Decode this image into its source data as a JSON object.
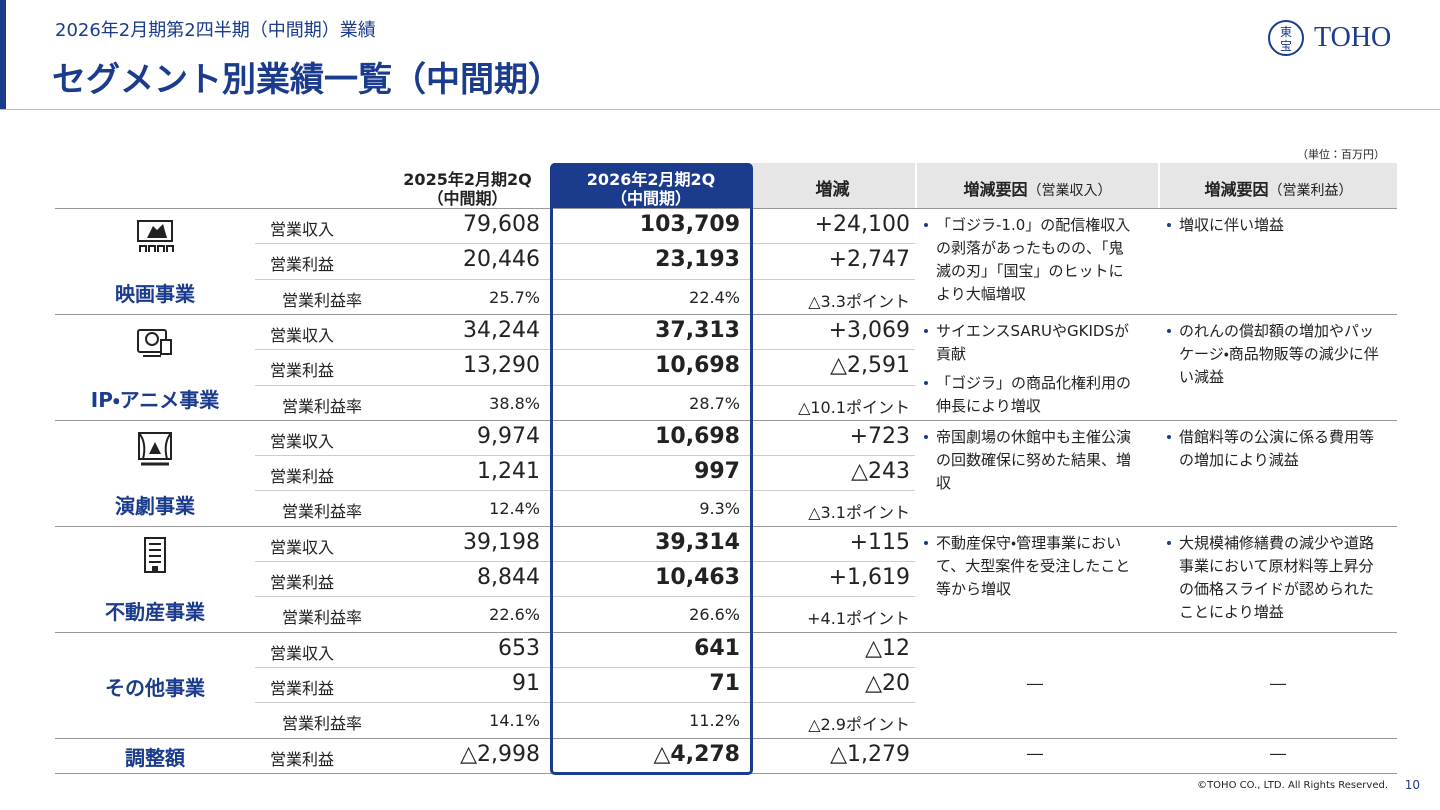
{
  "header": {
    "subtitle": "2026年2月期第2四半期（中間期）業績",
    "title": "セグメント別業績一覧（中間期）"
  },
  "logo": {
    "mark": "東宝",
    "text": "TOHO"
  },
  "unit": "（単位：百万円）",
  "table": {
    "columns": [
      {
        "lines": [
          "2025年2月期2Q",
          "（中間期）"
        ]
      },
      {
        "lines": [
          "2026年2月期2Q",
          "（中間期）"
        ]
      },
      {
        "lines": [
          "増減"
        ]
      },
      {
        "main": "増減要因",
        "sub": "（営業収入）"
      },
      {
        "main": "増減要因",
        "sub": "（営業利益）"
      }
    ],
    "segments": [
      {
        "name": "映画事業",
        "rows": [
          [
            "営業収入",
            "79,608",
            "103,709",
            "+24,100"
          ],
          [
            "営業利益",
            "20,446",
            "23,193",
            "+2,747"
          ],
          [
            "営業利益率",
            "25.7%",
            "22.4%",
            "△3.3ポイント"
          ]
        ],
        "revenue_factors": [
          "「ゴジラ-1.0」の配信権収入の剥落があったものの、「鬼滅の刃」「国宝」のヒットにより大幅増収"
        ],
        "profit_factors": [
          "増収に伴い増益"
        ]
      },
      {
        "name": "IP・アニメ事業",
        "rows": [
          [
            "営業収入",
            "34,244",
            "37,313",
            "+3,069"
          ],
          [
            "営業利益",
            "13,290",
            "10,698",
            "△2,591"
          ],
          [
            "営業利益率",
            "38.8%",
            "28.7%",
            "△10.1ポイント"
          ]
        ],
        "revenue_factors": [
          "サイエンスSARUやGKIDSが貢献",
          "「ゴジラ」の商品化権利用の伸長により増収"
        ],
        "profit_factors": [
          "のれんの償却額の増加やパッケージ・商品物販等の減少に伴い減益"
        ]
      },
      {
        "name": "演劇事業",
        "rows": [
          [
            "営業収入",
            "9,974",
            "10,698",
            "+723"
          ],
          [
            "営業利益",
            "1,241",
            "997",
            "△243"
          ],
          [
            "営業利益率",
            "12.4%",
            "9.3%",
            "△3.1ポイント"
          ]
        ],
        "revenue_factors": [
          "帝国劇場の休館中も主催公演の回数確保に努めた結果、増収"
        ],
        "profit_factors": [
          "借館料等の公演に係る費用等の増加により減益"
        ]
      },
      {
        "name": "不動産事業",
        "rows": [
          [
            "営業収入",
            "39,198",
            "39,314",
            "+115"
          ],
          [
            "営業利益",
            "8,844",
            "10,463",
            "+1,619"
          ],
          [
            "営業利益率",
            "22.6%",
            "26.6%",
            "+4.1ポイント"
          ]
        ],
        "revenue_factors": [
          "不動産保守・管理事業において、大型案件を受注したこと等から増収"
        ],
        "profit_factors": [
          "大規模補修繕費の減少や道路事業において原材料等上昇分の価格スライドが認められたことにより増益"
        ]
      },
      {
        "name": "その他事業",
        "rows": [
          [
            "営業収入",
            "653",
            "641",
            "△12"
          ],
          [
            "営業利益",
            "91",
            "71",
            "△20"
          ],
          [
            "営業利益率",
            "14.1%",
            "11.2%",
            "△2.9ポイント"
          ]
        ],
        "revenue_factors": "―",
        "profit_factors": "―"
      },
      {
        "name": "調整額",
        "rows": [
          [
            "営業利益",
            "△2,998",
            "△4,278",
            "△1,279"
          ]
        ],
        "revenue_factors": "―",
        "profit_factors": "―"
      }
    ]
  },
  "footer": {
    "copyright": "©TOHO CO., LTD. All Rights Reserved.",
    "page": "10"
  }
}
